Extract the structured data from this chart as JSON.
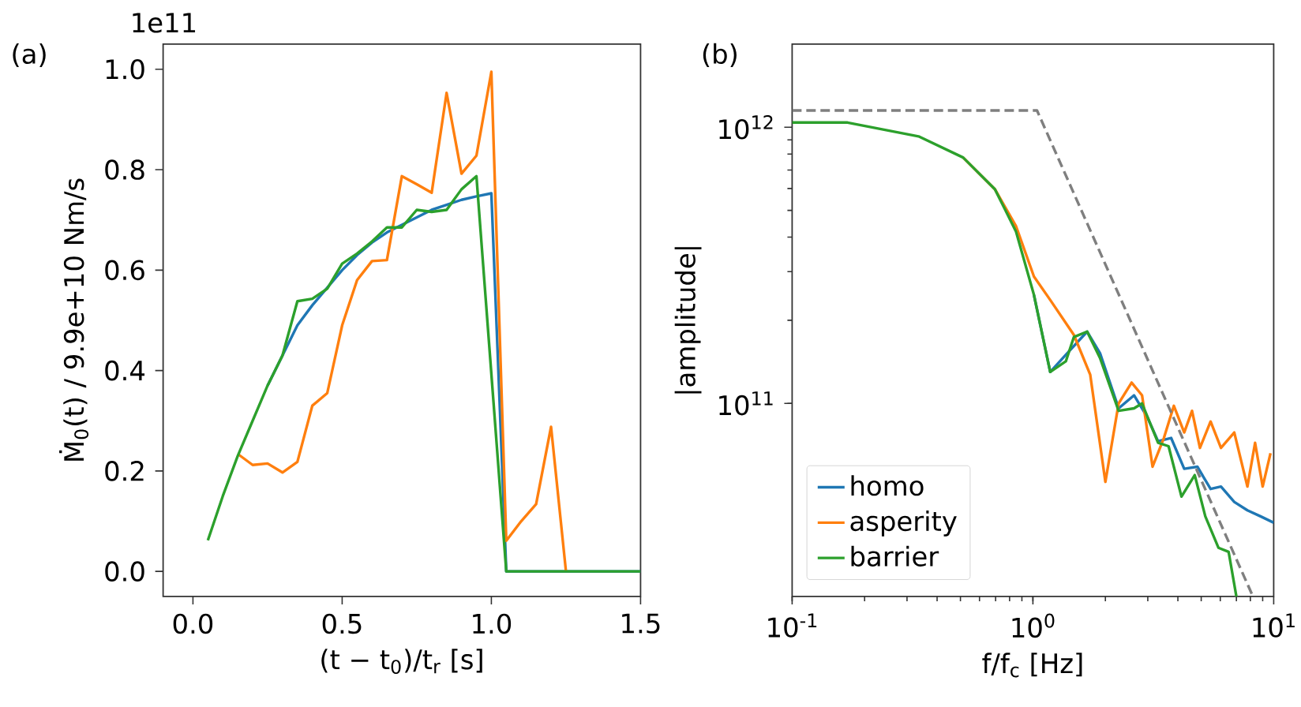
{
  "chart_data": [
    {
      "type": "line",
      "title": "(a)",
      "xlabel": "(t − t$_{0}$)/t$_{r}$ [s]",
      "ylabel": "Ṁ$_{0}$(t) / 9.9e+10 Nm/s",
      "annotations": [
        "1e11"
      ],
      "xlim": [
        -0.1,
        1.5
      ],
      "ylim": [
        -0.05,
        1.05
      ],
      "xticks": [
        {
          "value": 0,
          "label": "0.0"
        },
        {
          "value": 0.5,
          "label": "0.5"
        },
        {
          "value": 1,
          "label": "1.0"
        },
        {
          "value": 1.5,
          "label": "1.5"
        }
      ],
      "yticks": [
        {
          "value": 0,
          "label": "0.0"
        },
        {
          "value": 0.2,
          "label": "0.2"
        },
        {
          "value": 0.4,
          "label": "0.4"
        },
        {
          "value": 0.6,
          "label": "0.6"
        },
        {
          "value": 0.8,
          "label": "0.8"
        },
        {
          "value": 1,
          "label": "1.0"
        }
      ],
      "grid": false,
      "series": [
        {
          "color": "#1f77b4",
          "x": [
            0.25,
            0.3,
            0.35,
            0.4,
            0.45,
            0.5,
            0.55,
            0.6,
            0.65,
            0.7,
            0.75,
            0.8,
            0.85,
            0.9,
            0.95,
            1.0,
            1.05,
            1.5
          ],
          "values": [
            0.37,
            0.43,
            0.49,
            0.53,
            0.565,
            0.6,
            0.63,
            0.655,
            0.675,
            0.69,
            0.705,
            0.72,
            0.73,
            0.74,
            0.747,
            0.753,
            0,
            0
          ]
        },
        {
          "color": "#ff7f0e",
          "x": [
            0.15,
            0.2,
            0.25,
            0.3,
            0.35,
            0.4,
            0.45,
            0.5,
            0.55,
            0.6,
            0.65,
            0.7,
            0.75,
            0.8,
            0.85,
            0.9,
            0.95,
            1.0,
            1.05,
            1.1,
            1.15,
            1.2,
            1.25
          ],
          "values": [
            0.234,
            0.212,
            0.215,
            0.197,
            0.218,
            0.33,
            0.355,
            0.49,
            0.58,
            0.618,
            0.62,
            0.787,
            0.771,
            0.754,
            0.953,
            0.792,
            0.828,
            0.995,
            0.061,
            0.1,
            0.134,
            0.288,
            0
          ]
        },
        {
          "color": "#2ca02c",
          "x": [
            0.05,
            0.1,
            0.15,
            0.2,
            0.25,
            0.3,
            0.35,
            0.4,
            0.45,
            0.5,
            0.55,
            0.6,
            0.65,
            0.7,
            0.75,
            0.8,
            0.85,
            0.9,
            0.95,
            1.05,
            1.5
          ],
          "values": [
            0.062,
            0.15,
            0.23,
            0.3,
            0.37,
            0.43,
            0.538,
            0.543,
            0.563,
            0.613,
            0.633,
            0.657,
            0.685,
            0.685,
            0.72,
            0.716,
            0.72,
            0.761,
            0.787,
            0,
            0
          ]
        }
      ]
    },
    {
      "type": "line",
      "title": "(b)",
      "xlabel": "f/f$_{c}$ [Hz]",
      "ylabel": "|amplitude|",
      "log": "xy",
      "xlim": [
        0.1,
        10
      ],
      "ylim": [
        20000000000.0,
        2000000000000.0
      ],
      "xticks": [
        {
          "value": 0.1,
          "label": "10$^{-1}$"
        },
        {
          "value": 1,
          "label": "10$^{0}$"
        },
        {
          "value": 10,
          "label": "10$^{1}$"
        }
      ],
      "yticks": [
        {
          "value": 100000000000.0,
          "label": "10$^{11}$"
        },
        {
          "value": 1000000000000.0,
          "label": "10$^{12}$"
        }
      ],
      "grid": false,
      "legend": "bottom left",
      "series": [
        {
          "name": "homo",
          "color": "#1f77b4",
          "x": [
            1.01,
            1.18,
            1.37,
            1.68,
            1.9,
            2.27,
            2.63,
            2.99,
            3.31,
            3.75,
            4.25,
            4.82,
            5.47,
            6.04,
            6.86,
            7.78,
            8.82,
            10
          ],
          "values": [
            247000000000.0,
            130000000000.0,
            150000000000.0,
            182000000000.0,
            152000000000.0,
            96000000000.0,
            107000000000.0,
            89000000000.0,
            73000000000.0,
            75000000000.0,
            58000000000.0,
            59000000000.0,
            49000000000.0,
            50000000000.0,
            44000000000.0,
            41000000000.0,
            39000000000.0,
            37000000000.0
          ]
        },
        {
          "name": "asperity",
          "color": "#ff7f0e",
          "x": [
            0.513,
            0.695,
            0.85,
            1.01,
            1.18,
            1.48,
            1.73,
            2.0,
            2.27,
            2.57,
            2.84,
            3.14,
            3.5,
            3.85,
            4.25,
            4.58,
            4.94,
            5.47,
            6.04,
            6.86,
            7.78,
            8.37,
            9.0,
            9.7
          ],
          "values": [
            777000000000.0,
            597000000000.0,
            439000000000.0,
            288000000000.0,
            237000000000.0,
            177000000000.0,
            127000000000.0,
            52000000000.0,
            100000000000.0,
            119000000000.0,
            107000000000.0,
            59000000000.0,
            75000000000.0,
            98000000000.0,
            78500000000.0,
            94000000000.0,
            69000000000.0,
            86000000000.0,
            69000000000.0,
            78500000000.0,
            50000000000.0,
            72000000000.0,
            50000000000.0,
            66000000000.0
          ]
        },
        {
          "name": "barrier",
          "color": "#2ca02c",
          "x": [
            0.1,
            0.17,
            0.335,
            0.513,
            0.695,
            0.85,
            1.01,
            1.18,
            1.37,
            1.48,
            1.68,
            1.9,
            2.27,
            2.63,
            2.84,
            3.31,
            3.66,
            4.14,
            4.7,
            5.2,
            5.9,
            6.5,
            7.0
          ],
          "values": [
            1040000000000.0,
            1040000000000.0,
            927000000000.0,
            777000000000.0,
            597000000000.0,
            420000000000.0,
            247000000000.0,
            130000000000.0,
            142000000000.0,
            174000000000.0,
            182000000000.0,
            146000000000.0,
            94000000000.0,
            96000000000.0,
            100000000000.0,
            72000000000.0,
            70000000000.0,
            46000000000.0,
            55000000000.0,
            39000000000.0,
            30000000000.0,
            29000000000.0,
            20000000000.0
          ]
        },
        {
          "color": "#7f7f7f",
          "line_style": "dashed",
          "x": [
            0.1,
            1.04,
            8.2
          ],
          "values": [
            1150000000000.0,
            1150000000000.0,
            20000000000.0
          ]
        }
      ]
    }
  ]
}
